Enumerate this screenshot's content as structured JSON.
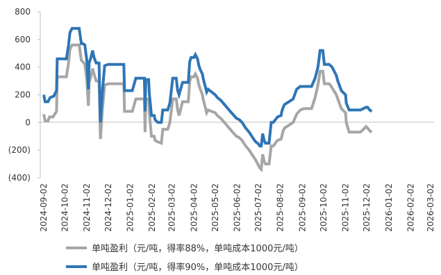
{
  "chart_data": {
    "type": "line",
    "title": "",
    "xlabel": "",
    "ylabel": "",
    "ylim": [
      -400,
      800
    ],
    "y_ticks": [
      {
        "value": 800,
        "label": "800"
      },
      {
        "value": 600,
        "label": "600"
      },
      {
        "value": 400,
        "label": "400"
      },
      {
        "value": 200,
        "label": "200"
      },
      {
        "value": 0,
        "label": "0"
      },
      {
        "value": -200,
        "label": "(200)"
      },
      {
        "value": -400,
        "label": "(400)"
      }
    ],
    "negative_tick_color": "#c00000",
    "x_ticks": [
      "2024-09-02",
      "2024-10-02",
      "2024-11-02",
      "2024-12-02",
      "2025-01-02",
      "2025-02-02",
      "2025-03-02",
      "2025-04-02",
      "2025-05-02",
      "2025-06-02",
      "2025-07-02",
      "2025-08-02",
      "2025-09-02",
      "2025-10-02",
      "2025-11-02",
      "2025-12-02",
      "2026-01-02",
      "2026-02-02",
      "2026-03-02"
    ],
    "grid": false,
    "legend_position": "bottom",
    "series": [
      {
        "name": "单吨盈利（元/吨，得率88%，单吨成本1000元/吨）",
        "color": "#a6a6a6",
        "points": [
          [
            "2024-09-02",
            60
          ],
          [
            "2024-09-04",
            10
          ],
          [
            "2024-09-08",
            10
          ],
          [
            "2024-09-10",
            40
          ],
          [
            "2024-09-15",
            40
          ],
          [
            "2024-09-20",
            80
          ],
          [
            "2024-09-21",
            330
          ],
          [
            "2024-09-27",
            330
          ],
          [
            "2024-10-04",
            330
          ],
          [
            "2024-10-07",
            430
          ],
          [
            "2024-10-09",
            530
          ],
          [
            "2024-10-12",
            560
          ],
          [
            "2024-10-22",
            560
          ],
          [
            "2024-10-25",
            450
          ],
          [
            "2024-10-27",
            440
          ],
          [
            "2024-10-30",
            420
          ],
          [
            "2024-11-02",
            300
          ],
          [
            "2024-11-04",
            120
          ],
          [
            "2024-11-05",
            290
          ],
          [
            "2024-11-07",
            320
          ],
          [
            "2024-11-10",
            390
          ],
          [
            "2024-11-12",
            350
          ],
          [
            "2024-11-15",
            300
          ],
          [
            "2024-11-19",
            300
          ],
          [
            "2024-11-21",
            -120
          ],
          [
            "2024-11-24",
            110
          ],
          [
            "2024-11-27",
            270
          ],
          [
            "2024-12-02",
            280
          ],
          [
            "2024-12-24",
            280
          ],
          [
            "2024-12-25",
            80
          ],
          [
            "2025-01-05",
            80
          ],
          [
            "2025-01-10",
            170
          ],
          [
            "2025-01-22",
            170
          ],
          [
            "2025-01-23",
            -70
          ],
          [
            "2025-01-24",
            170
          ],
          [
            "2025-01-28",
            170
          ],
          [
            "2025-01-29",
            70
          ],
          [
            "2025-02-01",
            -100
          ],
          [
            "2025-02-05",
            -100
          ],
          [
            "2025-02-06",
            -130
          ],
          [
            "2025-02-10",
            -140
          ],
          [
            "2025-02-15",
            -150
          ],
          [
            "2025-02-17",
            -50
          ],
          [
            "2025-02-24",
            -50
          ],
          [
            "2025-02-27",
            0
          ],
          [
            "2025-03-03",
            170
          ],
          [
            "2025-03-08",
            170
          ],
          [
            "2025-03-10",
            90
          ],
          [
            "2025-03-12",
            50
          ],
          [
            "2025-03-17",
            150
          ],
          [
            "2025-03-20",
            150
          ],
          [
            "2025-03-25",
            150
          ],
          [
            "2025-03-27",
            300
          ],
          [
            "2025-03-29",
            330
          ],
          [
            "2025-04-02",
            330
          ],
          [
            "2025-04-04",
            350
          ],
          [
            "2025-04-07",
            320
          ],
          [
            "2025-04-09",
            270
          ],
          [
            "2025-04-11",
            240
          ],
          [
            "2025-04-14",
            200
          ],
          [
            "2025-04-15",
            170
          ],
          [
            "2025-04-20",
            70
          ],
          [
            "2025-04-22",
            90
          ],
          [
            "2025-05-02",
            70
          ],
          [
            "2025-05-05",
            50
          ],
          [
            "2025-05-10",
            30
          ],
          [
            "2025-05-15",
            0
          ],
          [
            "2025-05-20",
            -30
          ],
          [
            "2025-05-25",
            -60
          ],
          [
            "2025-06-01",
            -100
          ],
          [
            "2025-06-05",
            -110
          ],
          [
            "2025-06-09",
            -130
          ],
          [
            "2025-06-14",
            -170
          ],
          [
            "2025-06-19",
            -200
          ],
          [
            "2025-06-24",
            -240
          ],
          [
            "2025-06-28",
            -270
          ],
          [
            "2025-07-01",
            -300
          ],
          [
            "2025-07-04",
            -330
          ],
          [
            "2025-07-06",
            -340
          ],
          [
            "2025-07-08",
            -230
          ],
          [
            "2025-07-10",
            -280
          ],
          [
            "2025-07-12",
            -300
          ],
          [
            "2025-07-17",
            -300
          ],
          [
            "2025-07-20",
            -170
          ],
          [
            "2025-07-23",
            -170
          ],
          [
            "2025-07-29",
            -130
          ],
          [
            "2025-08-03",
            -120
          ],
          [
            "2025-08-04",
            -100
          ],
          [
            "2025-08-06",
            -60
          ],
          [
            "2025-08-08",
            -40
          ],
          [
            "2025-08-14",
            -20
          ],
          [
            "2025-08-20",
            0
          ],
          [
            "2025-08-25",
            60
          ],
          [
            "2025-08-30",
            90
          ],
          [
            "2025-09-04",
            100
          ],
          [
            "2025-09-10",
            100
          ],
          [
            "2025-09-15",
            100
          ],
          [
            "2025-09-20",
            180
          ],
          [
            "2025-09-24",
            270
          ],
          [
            "2025-09-27",
            370
          ],
          [
            "2025-10-01",
            370
          ],
          [
            "2025-10-03",
            280
          ],
          [
            "2025-10-10",
            280
          ],
          [
            "2025-10-14",
            250
          ],
          [
            "2025-10-20",
            200
          ],
          [
            "2025-10-22",
            170
          ],
          [
            "2025-10-27",
            100
          ],
          [
            "2025-11-02",
            70
          ],
          [
            "2025-11-03",
            0
          ],
          [
            "2025-11-07",
            -70
          ],
          [
            "2025-11-11",
            -70
          ],
          [
            "2025-11-20",
            -70
          ],
          [
            "2025-11-23",
            -70
          ],
          [
            "2025-12-01",
            -30
          ],
          [
            "2025-12-03",
            -40
          ],
          [
            "2025-12-06",
            -60
          ],
          [
            "2025-12-09",
            -70
          ]
        ]
      },
      {
        "name": "单吨盈利（元/吨，得率90%，单吨成本1000元/吨）",
        "color": "#2e75b6",
        "points": [
          [
            "2024-09-02",
            200
          ],
          [
            "2024-09-04",
            150
          ],
          [
            "2024-09-08",
            150
          ],
          [
            "2024-09-11",
            180
          ],
          [
            "2024-09-16",
            190
          ],
          [
            "2024-09-20",
            230
          ],
          [
            "2024-09-21",
            460
          ],
          [
            "2024-09-27",
            460
          ],
          [
            "2024-10-04",
            460
          ],
          [
            "2024-10-07",
            560
          ],
          [
            "2024-10-09",
            650
          ],
          [
            "2024-10-12",
            680
          ],
          [
            "2024-10-22",
            680
          ],
          [
            "2024-10-25",
            570
          ],
          [
            "2024-10-27",
            570
          ],
          [
            "2024-10-30",
            560
          ],
          [
            "2024-11-02",
            440
          ],
          [
            "2024-11-04",
            240
          ],
          [
            "2024-11-05",
            430
          ],
          [
            "2024-11-07",
            460
          ],
          [
            "2024-11-10",
            520
          ],
          [
            "2024-11-12",
            470
          ],
          [
            "2024-11-15",
            430
          ],
          [
            "2024-11-19",
            430
          ],
          [
            "2024-11-21",
            0
          ],
          [
            "2024-11-24",
            240
          ],
          [
            "2024-11-27",
            410
          ],
          [
            "2024-12-02",
            420
          ],
          [
            "2024-12-24",
            420
          ],
          [
            "2024-12-25",
            230
          ],
          [
            "2025-01-05",
            230
          ],
          [
            "2025-01-10",
            320
          ],
          [
            "2025-01-22",
            320
          ],
          [
            "2025-01-23",
            80
          ],
          [
            "2025-01-24",
            310
          ],
          [
            "2025-01-28",
            310
          ],
          [
            "2025-01-29",
            210
          ],
          [
            "2025-02-01",
            50
          ],
          [
            "2025-02-05",
            50
          ],
          [
            "2025-02-06",
            20
          ],
          [
            "2025-02-10",
            0
          ],
          [
            "2025-02-15",
            0
          ],
          [
            "2025-02-17",
            90
          ],
          [
            "2025-02-24",
            90
          ],
          [
            "2025-02-27",
            140
          ],
          [
            "2025-03-03",
            320
          ],
          [
            "2025-03-08",
            320
          ],
          [
            "2025-03-10",
            230
          ],
          [
            "2025-03-12",
            200
          ],
          [
            "2025-03-17",
            290
          ],
          [
            "2025-03-20",
            290
          ],
          [
            "2025-03-25",
            290
          ],
          [
            "2025-03-27",
            440
          ],
          [
            "2025-03-29",
            470
          ],
          [
            "2025-04-02",
            470
          ],
          [
            "2025-04-04",
            490
          ],
          [
            "2025-04-07",
            460
          ],
          [
            "2025-04-09",
            410
          ],
          [
            "2025-04-11",
            380
          ],
          [
            "2025-04-14",
            350
          ],
          [
            "2025-04-15",
            320
          ],
          [
            "2025-04-20",
            220
          ],
          [
            "2025-04-22",
            240
          ],
          [
            "2025-05-02",
            200
          ],
          [
            "2025-05-05",
            180
          ],
          [
            "2025-05-10",
            160
          ],
          [
            "2025-05-15",
            130
          ],
          [
            "2025-05-20",
            100
          ],
          [
            "2025-05-25",
            70
          ],
          [
            "2025-06-01",
            30
          ],
          [
            "2025-06-05",
            20
          ],
          [
            "2025-06-09",
            0
          ],
          [
            "2025-06-14",
            -40
          ],
          [
            "2025-06-19",
            -70
          ],
          [
            "2025-06-24",
            -110
          ],
          [
            "2025-06-28",
            -140
          ],
          [
            "2025-07-01",
            -150
          ],
          [
            "2025-07-04",
            -170
          ],
          [
            "2025-07-06",
            -170
          ],
          [
            "2025-07-08",
            -80
          ],
          [
            "2025-07-10",
            -130
          ],
          [
            "2025-07-12",
            -150
          ],
          [
            "2025-07-17",
            -150
          ],
          [
            "2025-07-20",
            0
          ],
          [
            "2025-07-23",
            0
          ],
          [
            "2025-07-29",
            40
          ],
          [
            "2025-08-03",
            50
          ],
          [
            "2025-08-04",
            80
          ],
          [
            "2025-08-06",
            110
          ],
          [
            "2025-08-08",
            130
          ],
          [
            "2025-08-14",
            150
          ],
          [
            "2025-08-20",
            170
          ],
          [
            "2025-08-25",
            240
          ],
          [
            "2025-08-30",
            260
          ],
          [
            "2025-09-04",
            260
          ],
          [
            "2025-09-10",
            260
          ],
          [
            "2025-09-15",
            260
          ],
          [
            "2025-09-20",
            320
          ],
          [
            "2025-09-24",
            400
          ],
          [
            "2025-09-27",
            520
          ],
          [
            "2025-10-01",
            520
          ],
          [
            "2025-10-03",
            420
          ],
          [
            "2025-10-10",
            420
          ],
          [
            "2025-10-14",
            400
          ],
          [
            "2025-10-20",
            340
          ],
          [
            "2025-10-22",
            300
          ],
          [
            "2025-10-27",
            230
          ],
          [
            "2025-11-02",
            200
          ],
          [
            "2025-11-03",
            140
          ],
          [
            "2025-11-07",
            90
          ],
          [
            "2025-11-11",
            90
          ],
          [
            "2025-11-20",
            90
          ],
          [
            "2025-11-23",
            90
          ],
          [
            "2025-12-01",
            110
          ],
          [
            "2025-12-03",
            110
          ],
          [
            "2025-12-06",
            90
          ],
          [
            "2025-12-09",
            80
          ]
        ]
      }
    ]
  }
}
